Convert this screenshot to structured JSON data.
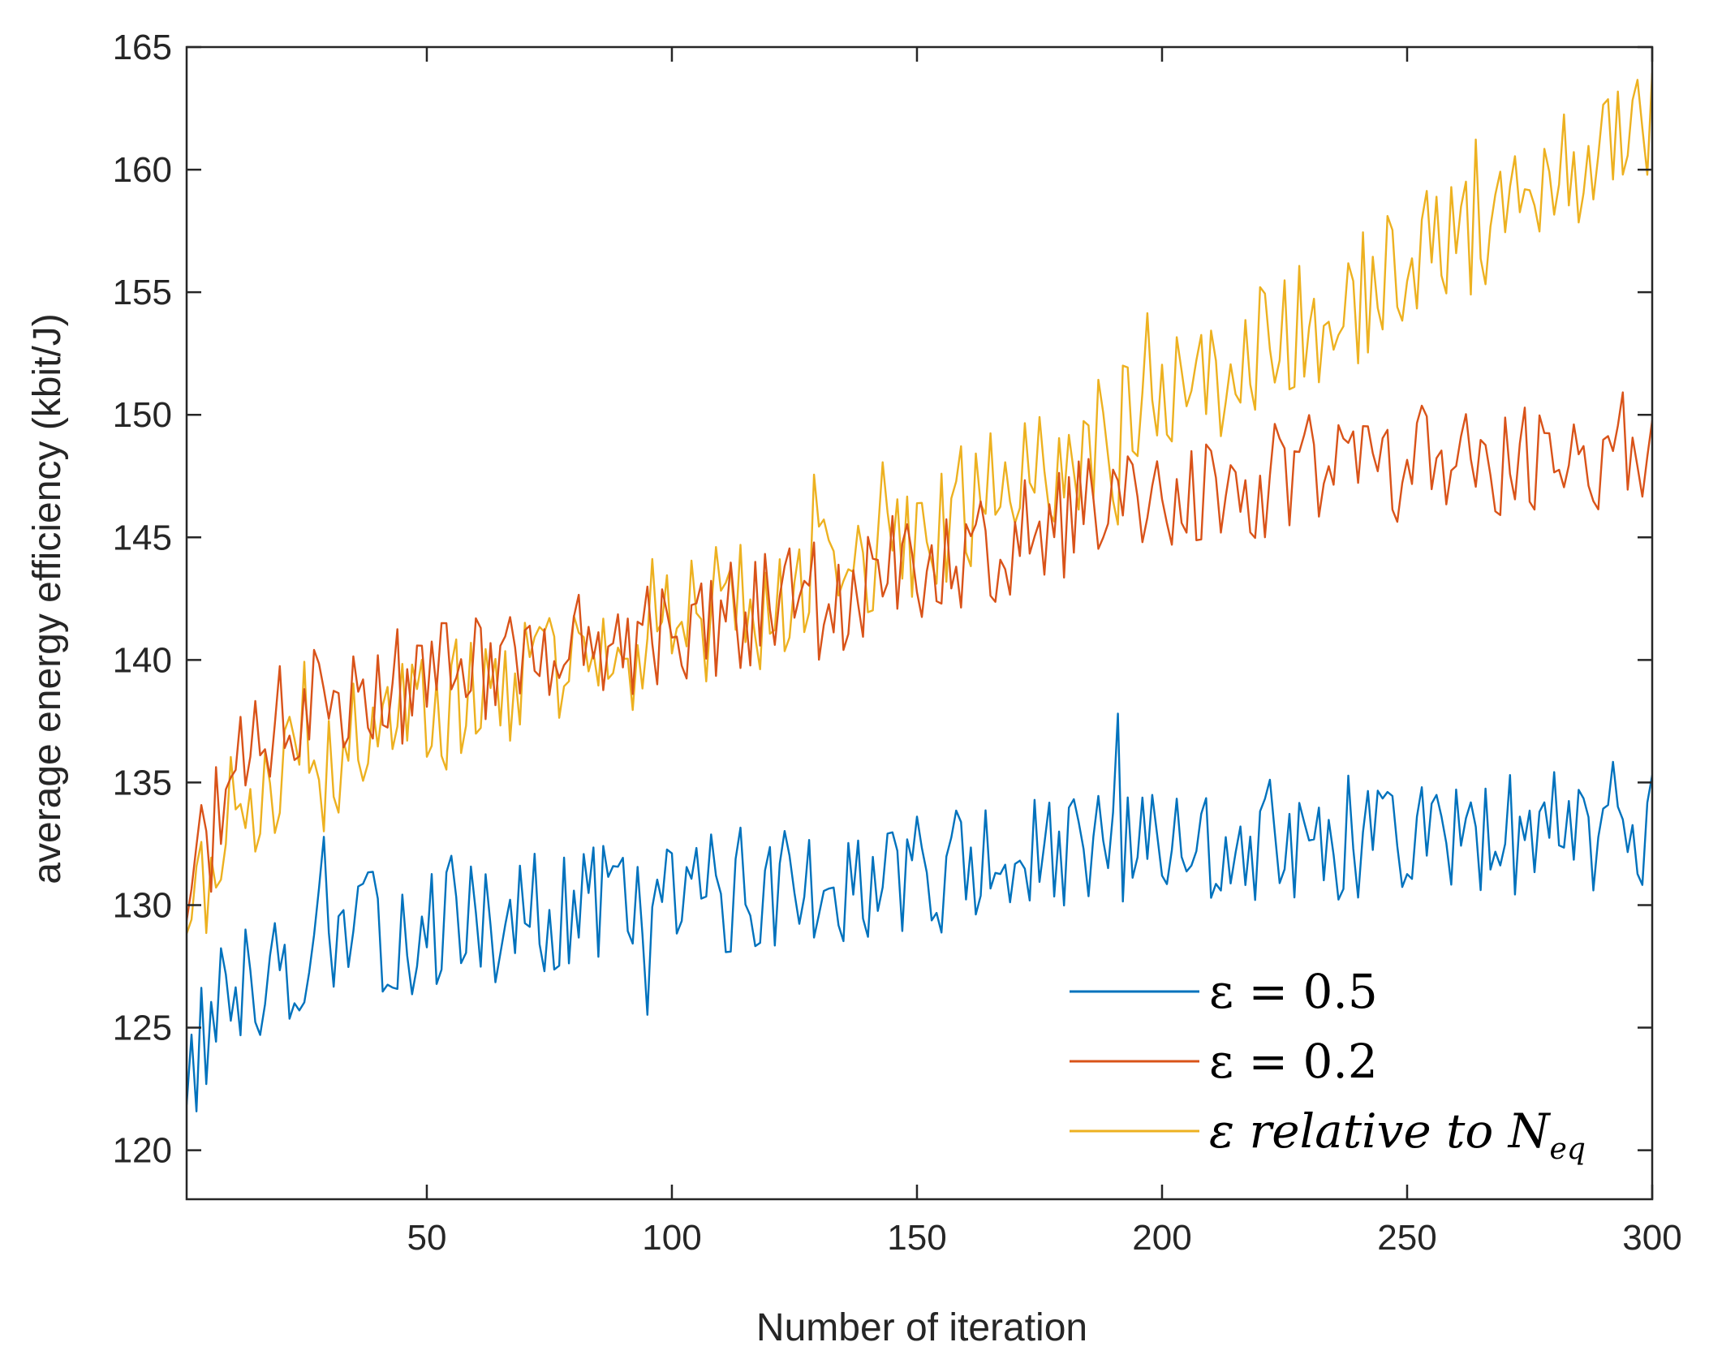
{
  "chart_data": {
    "type": "line",
    "title": "",
    "xlabel": "Number of iteration",
    "ylabel": "average energy efficiency (kbit/J)",
    "xlim": [
      1,
      300
    ],
    "ylim": [
      118,
      165
    ],
    "xticks": [
      50,
      100,
      150,
      200,
      250,
      300
    ],
    "yticks": [
      120,
      125,
      130,
      135,
      140,
      145,
      150,
      155,
      160,
      165
    ],
    "legend_position": "bottom-right",
    "series": [
      {
        "name": "ε = 0.5",
        "legend_label": "ε = 0.5",
        "color": "#0072BD",
        "x": [
          1,
          10,
          20,
          30,
          40,
          50,
          60,
          70,
          80,
          90,
          100,
          110,
          120,
          130,
          140,
          150,
          160,
          170,
          180,
          190,
          200,
          210,
          220,
          230,
          240,
          250,
          260,
          270,
          280,
          290,
          300
        ],
        "values": [
          123.2,
          126.5,
          127.5,
          128.5,
          128.8,
          129.0,
          129.3,
          129.6,
          129.9,
          130.1,
          130.3,
          130.6,
          130.8,
          131.0,
          131.2,
          131.4,
          131.5,
          131.7,
          131.9,
          132.1,
          132.3,
          132.4,
          132.5,
          132.6,
          132.7,
          132.8,
          132.9,
          133.0,
          133.1,
          133.2,
          133.3
        ]
      },
      {
        "name": "ε = 0.2",
        "legend_label": "ε = 0.2",
        "color": "#D95319",
        "x": [
          1,
          10,
          20,
          30,
          40,
          50,
          60,
          70,
          80,
          90,
          100,
          110,
          120,
          130,
          140,
          150,
          160,
          170,
          180,
          190,
          200,
          210,
          220,
          230,
          240,
          250,
          260,
          270,
          280,
          290,
          300
        ],
        "values": [
          130.5,
          134.8,
          137.5,
          138.6,
          139.2,
          139.5,
          139.9,
          140.2,
          140.5,
          140.8,
          141.2,
          141.8,
          142.2,
          142.8,
          143.4,
          143.8,
          144.3,
          145.0,
          145.6,
          146.1,
          146.6,
          147.0,
          147.3,
          147.6,
          147.8,
          148.0,
          148.2,
          148.3,
          148.4,
          148.5,
          148.6
        ]
      },
      {
        "name": "ε relative to N_eq",
        "legend_label": "ε relative to N",
        "legend_subscript": "eq",
        "color": "#EDB120",
        "x": [
          1,
          10,
          20,
          30,
          40,
          50,
          60,
          70,
          80,
          90,
          100,
          110,
          120,
          130,
          140,
          150,
          160,
          170,
          180,
          190,
          200,
          210,
          220,
          230,
          240,
          250,
          260,
          270,
          280,
          290,
          300
        ],
        "values": [
          129.8,
          133.5,
          134.8,
          135.8,
          136.8,
          137.6,
          138.4,
          139.0,
          139.6,
          140.2,
          141.0,
          142.0,
          142.5,
          143.5,
          144.3,
          145.3,
          146.2,
          147.2,
          148.2,
          149.0,
          150.2,
          151.3,
          152.5,
          153.8,
          154.8,
          156.0,
          157.0,
          158.2,
          159.3,
          160.6,
          162.2
        ]
      }
    ]
  }
}
